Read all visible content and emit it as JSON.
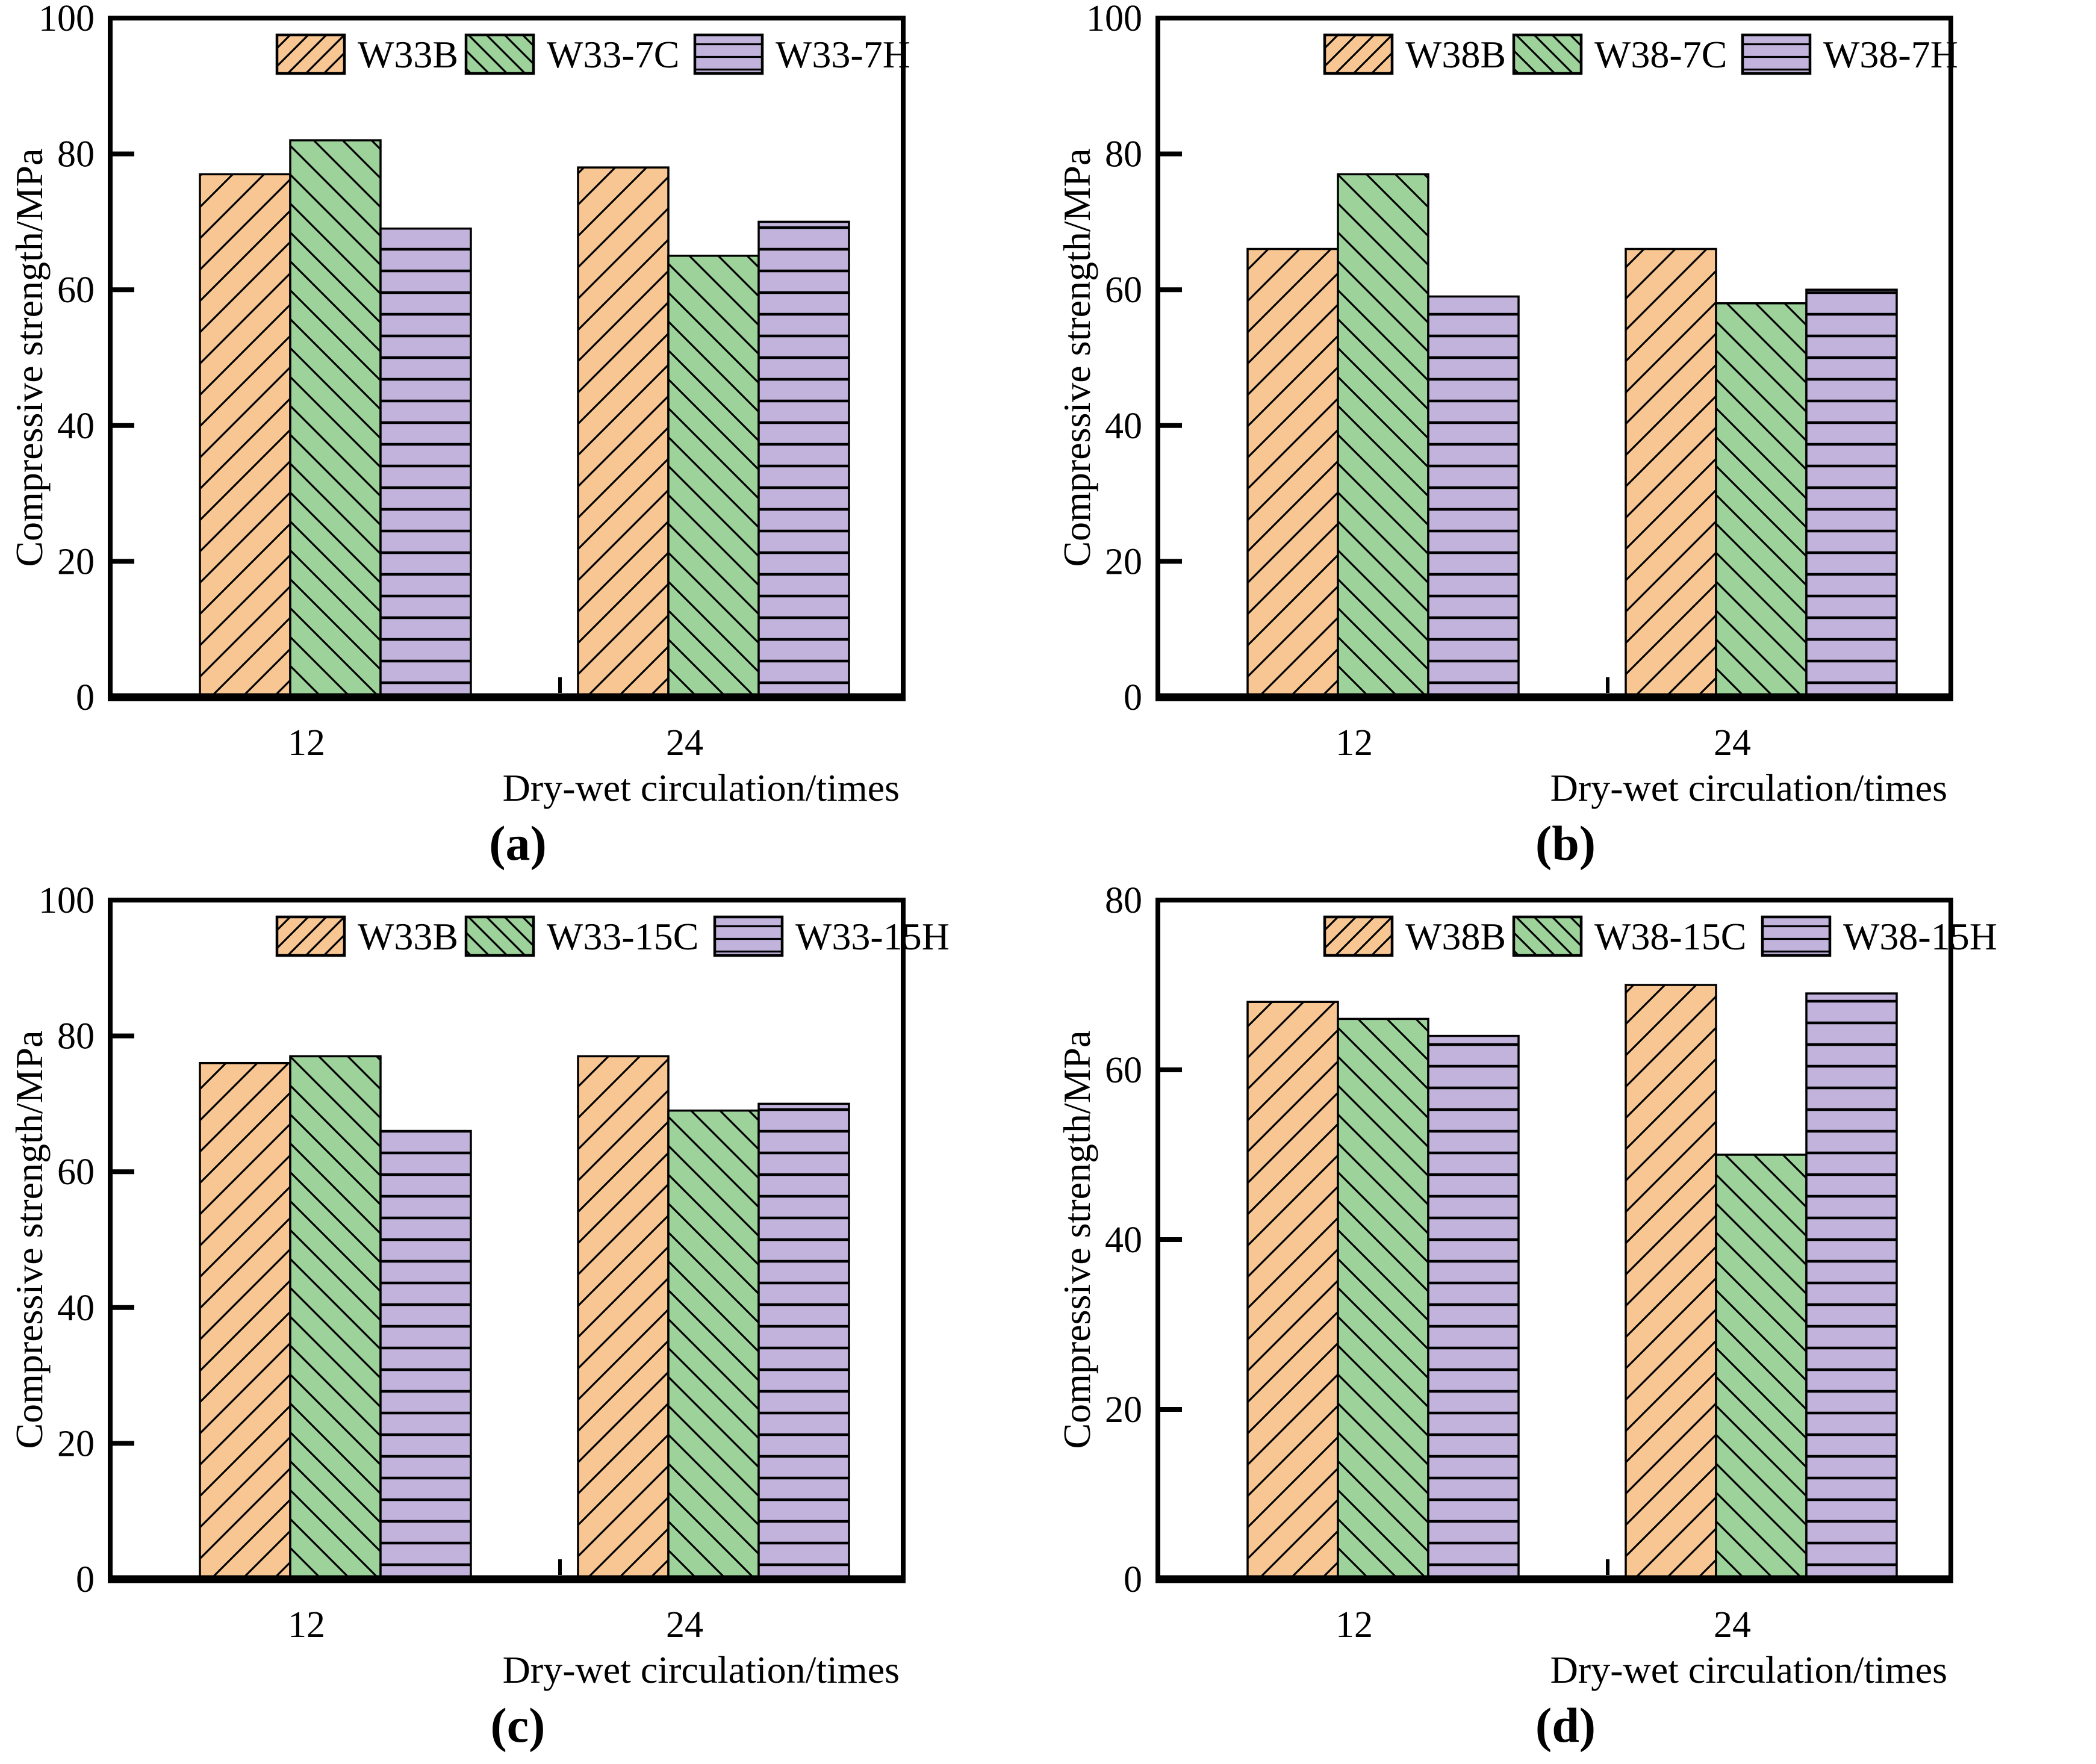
{
  "figure": {
    "background": "#ffffff",
    "text_color": "#000000",
    "axis_color": "#000000"
  },
  "chart_data": [
    {
      "id": "a",
      "type": "bar",
      "caption": "(a)",
      "title": "",
      "xlabel": "Dry-wet circulation/times",
      "ylabel": "Compressive strength/MPa",
      "ylim": [
        0,
        100
      ],
      "yticks": [
        0,
        20,
        40,
        60,
        80,
        100
      ],
      "categories": [
        "12",
        "24"
      ],
      "series": [
        {
          "name": "W33B",
          "values": [
            77,
            78
          ],
          "color": "#F8C692",
          "hatch": "diagonal-forward"
        },
        {
          "name": "W33-7C",
          "values": [
            82,
            65
          ],
          "color": "#9DD39B",
          "hatch": "diagonal-back"
        },
        {
          "name": "W33-7H",
          "values": [
            69,
            70
          ],
          "color": "#C1B3DB",
          "hatch": "horizontal"
        }
      ],
      "legend_position": "top-inside",
      "grid": false
    },
    {
      "id": "b",
      "type": "bar",
      "caption": "(b)",
      "title": "",
      "xlabel": "Dry-wet circulation/times",
      "ylabel": "Compressive strength/MPa",
      "ylim": [
        0,
        100
      ],
      "yticks": [
        0,
        20,
        40,
        60,
        80,
        100
      ],
      "categories": [
        "12",
        "24"
      ],
      "series": [
        {
          "name": "W38B",
          "values": [
            66,
            66
          ],
          "color": "#F8C692",
          "hatch": "diagonal-forward"
        },
        {
          "name": "W38-7C",
          "values": [
            77,
            58
          ],
          "color": "#9DD39B",
          "hatch": "diagonal-back"
        },
        {
          "name": "W38-7H",
          "values": [
            59,
            60
          ],
          "color": "#C1B3DB",
          "hatch": "horizontal"
        }
      ],
      "legend_position": "top-inside",
      "grid": false
    },
    {
      "id": "c",
      "type": "bar",
      "caption": "(c)",
      "title": "",
      "xlabel": "Dry-wet circulation/times",
      "ylabel": "Compressive strength/MPa",
      "ylim": [
        0,
        100
      ],
      "yticks": [
        0,
        20,
        40,
        60,
        80,
        100
      ],
      "categories": [
        "12",
        "24"
      ],
      "series": [
        {
          "name": "W33B",
          "values": [
            76,
            77
          ],
          "color": "#F8C692",
          "hatch": "diagonal-forward"
        },
        {
          "name": "W33-15C",
          "values": [
            77,
            69
          ],
          "color": "#9DD39B",
          "hatch": "diagonal-back"
        },
        {
          "name": "W33-15H",
          "values": [
            66,
            70
          ],
          "color": "#C1B3DB",
          "hatch": "horizontal"
        }
      ],
      "legend_position": "top-inside",
      "grid": false
    },
    {
      "id": "d",
      "type": "bar",
      "caption": "(d)",
      "title": "",
      "xlabel": "Dry-wet circulation/times",
      "ylabel": "Compressive strength/MPa",
      "ylim": [
        0,
        80
      ],
      "yticks": [
        0,
        20,
        40,
        60,
        80
      ],
      "categories": [
        "12",
        "24"
      ],
      "series": [
        {
          "name": "W38B",
          "values": [
            68,
            70
          ],
          "color": "#F8C692",
          "hatch": "diagonal-forward"
        },
        {
          "name": "W38-15C",
          "values": [
            66,
            50
          ],
          "color": "#9DD39B",
          "hatch": "diagonal-back"
        },
        {
          "name": "W38-15H",
          "values": [
            64,
            69
          ],
          "color": "#C1B3DB",
          "hatch": "horizontal"
        }
      ],
      "legend_position": "top-inside",
      "grid": false
    }
  ]
}
